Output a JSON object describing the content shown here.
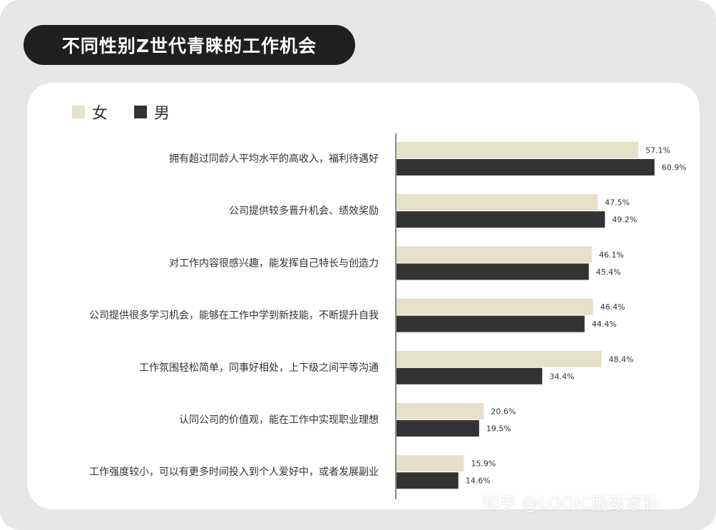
{
  "title": "不同性别Z世代青睐的工作机会",
  "legend": {
    "female": "女",
    "male": "男"
  },
  "colors": {
    "female": "#e6dfca",
    "male": "#333333",
    "title_bg": "#1f1f1f",
    "background": "#e6e6e6",
    "card": "#ffffff"
  },
  "watermark": "知乎 @LOGIC励致家私",
  "chart_data": {
    "type": "bar",
    "orientation": "horizontal",
    "categories": [
      "拥有超过同龄人平均水平的高收入，福利待遇好",
      "公司提供较多晋升机会、绩效奖励",
      "对工作内容很感兴趣，能发挥自己特长与创造力",
      "公司提供很多学习机会，能够在工作中学到新技能，不断提升自我",
      "工作氛围轻松简单，同事好相处，上下级之间平等沟通",
      "认同公司的价值观，能在工作中实现职业理想",
      "工作强度较小，可以有更多时间投入到个人爱好中，或者发展副业"
    ],
    "series": [
      {
        "name": "女",
        "values": [
          57.1,
          47.5,
          46.1,
          46.4,
          48.4,
          20.6,
          15.9
        ],
        "labels": [
          "57.1%",
          "47.5%",
          "46.1%",
          "46.4%",
          "48.4%",
          "20.6%",
          "15.9%"
        ]
      },
      {
        "name": "男",
        "values": [
          60.9,
          49.2,
          45.4,
          44.4,
          34.4,
          19.5,
          14.6
        ],
        "labels": [
          "60.9%",
          "49.2%",
          "45.4%",
          "44.4%",
          "34.4%",
          "19.5%",
          "14.6%"
        ]
      }
    ],
    "unit": "%",
    "legend_position": "top-left",
    "grid": false
  }
}
